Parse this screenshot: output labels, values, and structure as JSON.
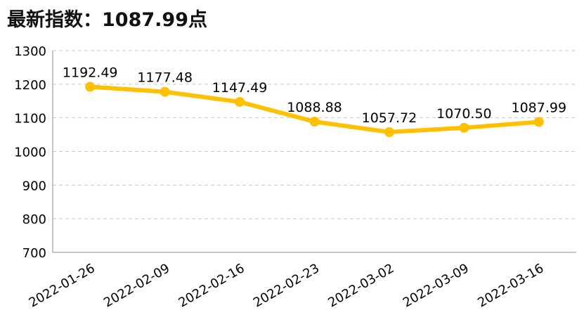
{
  "chart_data": {
    "type": "line",
    "title": "最新指数：1087.99点",
    "categories": [
      "2022-01-26",
      "2022-02-09",
      "2022-02-16",
      "2022-02-23",
      "2022-03-02",
      "2022-03-09",
      "2022-03-16"
    ],
    "series": [
      {
        "values": [
          1192.49,
          1177.48,
          1147.49,
          1088.88,
          1057.72,
          1070.5,
          1087.99
        ],
        "labels": [
          "1192.49",
          "1177.48",
          "1147.49",
          "1088.88",
          "1057.72",
          "1070.50",
          "1087.99"
        ],
        "color": "#FFC000"
      }
    ],
    "ylim": [
      700,
      1300
    ],
    "yticks": [
      "700",
      "800",
      "900",
      "1000",
      "1100",
      "1200",
      "1300"
    ],
    "grid": true
  }
}
